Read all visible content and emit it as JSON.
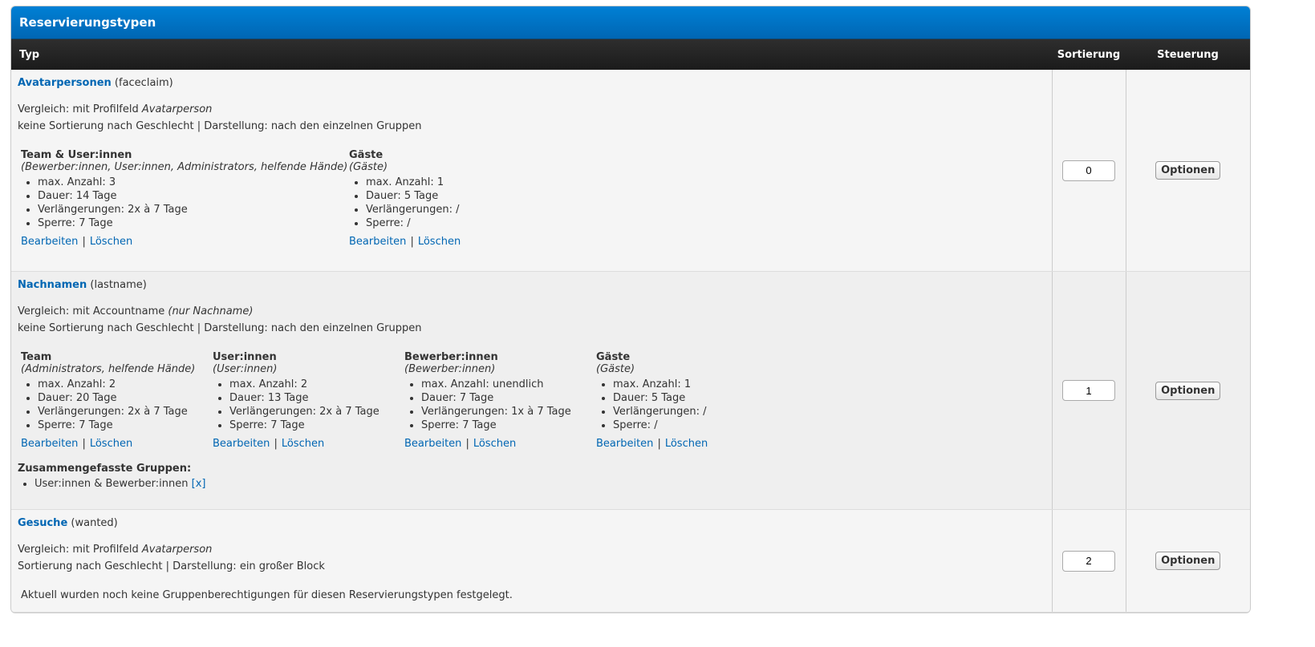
{
  "title": "Reservierungstypen",
  "columns": {
    "typ": "Typ",
    "sort": "Sortierung",
    "ctrl": "Steuerung"
  },
  "labels": {
    "edit": "Bearbeiten",
    "delete": "Löschen",
    "sep": "|",
    "options": "Optionen",
    "merged": "Zusammengefasste Gruppen:",
    "remove": "[x]"
  },
  "rows": [
    {
      "name": "Avatarpersonen",
      "key": "(faceclaim)",
      "cmp": "Vergleich: mit Profilfeld ",
      "cmp_em": "Avatarperson",
      "info": "keine Sortierung nach Geschlecht | Darstellung: nach den einzelnen Gruppen",
      "sort": "0",
      "groups": [
        {
          "name": "Team & User:innen",
          "members": "(Bewerber:innen, User:innen, Administrators, helfende Hände)",
          "items": [
            "max. Anzahl: 3",
            "Dauer: 14 Tage",
            "Verlängerungen: 2x à 7 Tage",
            "Sperre: 7 Tage"
          ]
        },
        {
          "name": "Gäste",
          "members": "(Gäste)",
          "items": [
            "max. Anzahl: 1",
            "Dauer: 5 Tage",
            "Verlängerungen: /",
            "Sperre: /"
          ]
        }
      ]
    },
    {
      "name": "Nachnamen",
      "key": "(lastname)",
      "cmp": "Vergleich: mit Accountname ",
      "cmp_em": "(nur Nachname)",
      "info": "keine Sortierung nach Geschlecht | Darstellung: nach den einzelnen Gruppen",
      "sort": "1",
      "groups": [
        {
          "name": "Team",
          "members": "(Administrators, helfende Hände)",
          "items": [
            "max. Anzahl: 2",
            "Dauer: 20 Tage",
            "Verlängerungen: 2x à 7 Tage",
            "Sperre: 7 Tage"
          ]
        },
        {
          "name": "User:innen",
          "members": "(User:innen)",
          "items": [
            "max. Anzahl: 2",
            "Dauer: 13 Tage",
            "Verlängerungen: 2x à 7 Tage",
            "Sperre: 7 Tage"
          ]
        },
        {
          "name": "Bewerber:innen",
          "members": "(Bewerber:innen)",
          "items": [
            "max. Anzahl: unendlich",
            "Dauer: 7 Tage",
            "Verlängerungen: 1x à 7 Tage",
            "Sperre: 7 Tage"
          ]
        },
        {
          "name": "Gäste",
          "members": "(Gäste)",
          "items": [
            "max. Anzahl: 1",
            "Dauer: 5 Tage",
            "Verlängerungen: /",
            "Sperre: /"
          ]
        }
      ],
      "merged": [
        "User:innen & Bewerber:innen"
      ]
    },
    {
      "name": "Gesuche",
      "key": "(wanted)",
      "cmp": "Vergleich: mit Profilfeld ",
      "cmp_em": "Avatarperson",
      "info": "Sortierung nach Geschlecht | Darstellung: ein großer Block",
      "sort": "2",
      "empty": "Aktuell wurden noch keine Gruppenberechtigungen für diesen Reservierungstypen festgelegt."
    }
  ]
}
